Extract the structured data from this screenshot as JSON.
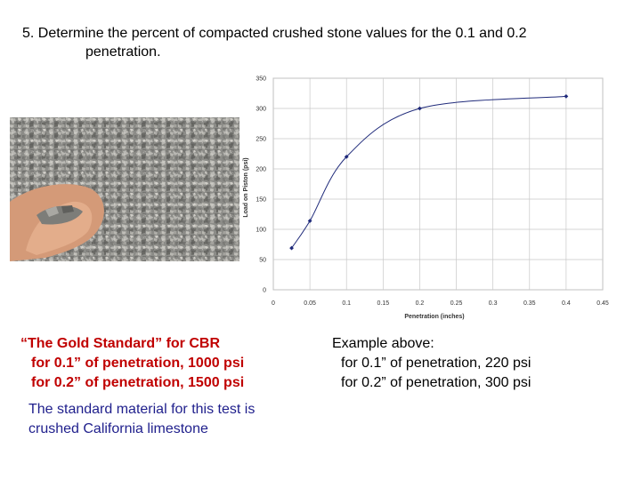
{
  "question": {
    "line1": "5. Determine the percent of compacted crushed stone values for the 0.1 and 0.2",
    "line2": "penetration."
  },
  "photo": {
    "description_icon": "hand-holding-crushed-stone"
  },
  "gold_standard": {
    "heading": "“The Gold Standard” for CBR",
    "line1": "for 0.1” of penetration, 1000 psi",
    "line2": "for 0.2” of penetration, 1500 psi",
    "color": "#c00000"
  },
  "example": {
    "heading": "Example above:",
    "line1": "for 0.1” of penetration, 220 psi",
    "line2": "for 0.2” of penetration, 300 psi"
  },
  "material_note": {
    "line1": "The standard material for this test is",
    "line2": "crushed California limestone",
    "color": "#1f1f8c"
  },
  "chart_data": {
    "type": "line",
    "xlabel": "Penetration (inches)",
    "ylabel": "Load on Piston (psi)",
    "xlim": [
      0,
      0.45
    ],
    "ylim": [
      0,
      350
    ],
    "xticks": [
      0,
      0.05,
      0.1,
      0.15,
      0.2,
      0.25,
      0.3,
      0.35,
      0.4,
      0.45
    ],
    "xtick_labels": [
      "0",
      "0.05",
      "0.1",
      "0.15",
      "0.2",
      "0.25",
      "0.3",
      "0.35",
      "0.4",
      "0.45"
    ],
    "yticks": [
      0,
      50,
      100,
      150,
      200,
      250,
      300,
      350
    ],
    "ytick_labels": [
      "0",
      "50",
      "100",
      "150",
      "200",
      "250",
      "300",
      "350"
    ],
    "grid": true,
    "series": [
      {
        "x": [
          0.025,
          0.05,
          0.1,
          0.2,
          0.4
        ],
        "y": [
          69,
          114,
          220,
          300,
          320
        ],
        "color": "#1f2a7a"
      }
    ]
  }
}
